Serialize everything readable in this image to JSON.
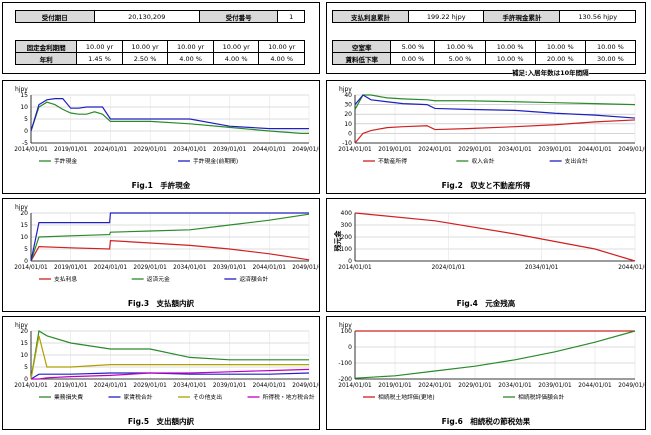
{
  "header_left": {
    "row1": {
      "label_a": "受付期日",
      "value_a": "20,130,209",
      "label_b": "受付番号",
      "value_b": "1"
    },
    "fixed_rate_label": "固定金利期間",
    "fixed_rates": [
      "10.00 yr",
      "10.00 yr",
      "10.00 yr",
      "10.00 yr",
      "10.00 yr"
    ],
    "annual_rate_label": "年利",
    "annual_rates": [
      "1.45 %",
      "2.50 %",
      "4.00 %",
      "4.00 %",
      "4.00 %"
    ]
  },
  "header_right": {
    "row1": {
      "label_a": "支払利息累計",
      "value_a": "199.22 hjpy",
      "label_b": "手許現金累計",
      "value_b": "130.56 hjpy"
    },
    "vacancy_label": "空室率",
    "vacancy_rates": [
      "5.00 %",
      "10.00 %",
      "10.00 %",
      "10.00 %",
      "10.00 %"
    ],
    "rent_drop_label": "賃料低下率",
    "rent_drop_rates": [
      "0.00 %",
      "5.00 %",
      "10.00 %",
      "20.00 %",
      "30.00 %"
    ],
    "note": "補足:入居年数は10年間隔"
  },
  "charts": [
    {
      "caption": "Fig.1　手許現金",
      "chart_data": {
        "type": "line",
        "ylabel": "hjpy",
        "ylim": [
          -5,
          15
        ],
        "yticks": [
          -5,
          0,
          5,
          10,
          15
        ],
        "x": [
          2014,
          2015,
          2016,
          2017,
          2018,
          2019,
          2020,
          2021,
          2022,
          2023,
          2024,
          2029,
          2034,
          2039,
          2044,
          2048,
          2049
        ],
        "xticks": [
          "2014/01/01",
          "2019/01/01",
          "2024/01/01",
          "2029/01/01",
          "2034/01/01",
          "2039/01/01",
          "2044/01/01",
          "2049/01/01"
        ],
        "series": [
          {
            "name": "手許現金",
            "color": "#2a8a2a",
            "values": [
              0,
              10,
              12,
              11,
              9,
              7.5,
              7,
              7,
              8,
              7,
              4,
              4,
              3,
              1.5,
              0,
              -1,
              -1
            ]
          },
          {
            "name": "手許現金(前期間)",
            "color": "#2020c0",
            "values": [
              0,
              11,
              13,
              13.5,
              13.5,
              9.5,
              9.5,
              10,
              10,
              10,
              5,
              5,
              5,
              2,
              1,
              1,
              1
            ]
          }
        ]
      }
    },
    {
      "caption": "Fig.2　収支と不動産所得",
      "chart_data": {
        "type": "line",
        "ylabel": "hjpy",
        "ylim": [
          -10,
          40
        ],
        "yticks": [
          -10,
          0,
          10,
          20,
          30,
          40
        ],
        "x": [
          2014,
          2015,
          2016,
          2018,
          2020,
          2023,
          2024,
          2028,
          2034,
          2039,
          2044,
          2049
        ],
        "xticks": [
          "2014/01/01",
          "2019/01/01",
          "2024/01/01",
          "2029/01/01",
          "2034/01/01",
          "2039/01/01",
          "2044/01/01",
          "2049/01/01"
        ],
        "series": [
          {
            "name": "不動産所得",
            "color": "#d02020",
            "values": [
              -10,
              0,
              3,
              6,
              7,
              8,
              4,
              5,
              7,
              9,
              12,
              14
            ]
          },
          {
            "name": "収入合計",
            "color": "#2a8a2a",
            "values": [
              25,
              42,
              40,
              37,
              36,
              35,
              34,
              34,
              33,
              32,
              31,
              30
            ]
          },
          {
            "name": "支出合計",
            "color": "#2020c0",
            "values": [
              30,
              44,
              35,
              33,
              31,
              30,
              26,
              25,
              24,
              21,
              19,
              16
            ]
          }
        ]
      }
    },
    {
      "caption": "Fig.3　支払額内訳",
      "chart_data": {
        "type": "line",
        "ylabel": "hjpy",
        "ylim": [
          0,
          20
        ],
        "yticks": [
          0,
          5,
          10,
          15,
          20
        ],
        "x": [
          2014,
          2015,
          2019,
          2023.9,
          2024,
          2029,
          2034,
          2039,
          2044,
          2049
        ],
        "xticks": [
          "2014/01/01",
          "2019/01/01",
          "2024/01/01",
          "2029/01/01",
          "2034/01/01",
          "2039/01/01",
          "2044/01/01",
          "2049/01/01"
        ],
        "series": [
          {
            "name": "支払利息",
            "color": "#d02020",
            "values": [
              0,
              6,
              5.5,
              5,
              8.5,
              7.5,
              6.5,
              5,
              3,
              0.5
            ]
          },
          {
            "name": "返済元金",
            "color": "#2a8a2a",
            "values": [
              0,
              10,
              10.5,
              11,
              12,
              12.5,
              13,
              15,
              17,
              19.5
            ]
          },
          {
            "name": "返済額合計",
            "color": "#2020c0",
            "values": [
              0,
              16,
              16,
              16,
              20,
              20,
              20,
              20,
              20,
              20
            ]
          }
        ]
      }
    },
    {
      "caption": "Fig.4　元金残高",
      "chart_data": {
        "type": "line",
        "ylabel": "残元金",
        "ylim": [
          0,
          400
        ],
        "yticks": [
          0,
          100,
          200,
          300,
          400
        ],
        "x": [
          2014,
          2024,
          2034,
          2044,
          2049
        ],
        "xticks": [
          "2014/01/01",
          "2024/01/01",
          "2034/01/01",
          "2044/01/01"
        ],
        "series": [
          {
            "name": "",
            "color": "#d02020",
            "values": [
              430,
              335,
              225,
              100,
              0
            ]
          }
        ]
      }
    },
    {
      "caption": "Fig.5　支出額内訳",
      "chart_data": {
        "type": "line",
        "ylabel": "hjpy",
        "ylim": [
          0,
          20
        ],
        "yticks": [
          0,
          5,
          10,
          15,
          20
        ],
        "x": [
          2014,
          2015,
          2016,
          2019,
          2024,
          2029,
          2034,
          2039,
          2044,
          2049
        ],
        "xticks": [
          "2014/01/01",
          "2019/01/01",
          "2024/01/01",
          "2029/01/01",
          "2034/01/01",
          "2039/01/01",
          "2044/01/01",
          "2049/01/01"
        ],
        "series": [
          {
            "name": "業務損失費",
            "color": "#2a8a2a",
            "values": [
              0,
              21,
              18,
              15,
              12.5,
              12.5,
              9,
              8,
              8,
              8
            ]
          },
          {
            "name": "家賃税合計",
            "color": "#2020c0",
            "values": [
              0,
              2,
              2,
              2,
              2.5,
              2.5,
              2,
              2,
              2,
              2.5
            ]
          },
          {
            "name": "その他支出",
            "color": "#b0a000",
            "values": [
              0,
              18,
              5,
              5,
              6,
              6,
              6,
              6,
              6,
              6
            ]
          },
          {
            "name": "所得税・地方税合計",
            "color": "#c000c0",
            "values": [
              0,
              0,
              0.5,
              1,
              1.5,
              2.5,
              2.5,
              3,
              3.5,
              4
            ]
          }
        ]
      }
    },
    {
      "caption": "Fig.6　相続税の節税効果",
      "chart_data": {
        "type": "line",
        "ylabel": "hjpy",
        "ylim": [
          -200,
          100
        ],
        "yticks": [
          -200,
          -100,
          0,
          100
        ],
        "x": [
          2014,
          2019,
          2024,
          2029,
          2034,
          2039,
          2044,
          2049
        ],
        "xticks": [
          "2014/01/01",
          "2019/01/01",
          "2024/01/01",
          "2029/01/01",
          "2034/01/01",
          "2039/01/01",
          "2044/01/01",
          "2049/01/01"
        ],
        "series": [
          {
            "name": "相続税土地評価(更地)",
            "color": "#d02020",
            "values": [
              100,
              100,
              100,
              100,
              100,
              100,
              100,
              100
            ]
          },
          {
            "name": "相続税評価額合計",
            "color": "#2a8a2a",
            "values": [
              -195,
              -180,
              -150,
              -120,
              -80,
              -30,
              30,
              100
            ]
          }
        ]
      }
    }
  ]
}
